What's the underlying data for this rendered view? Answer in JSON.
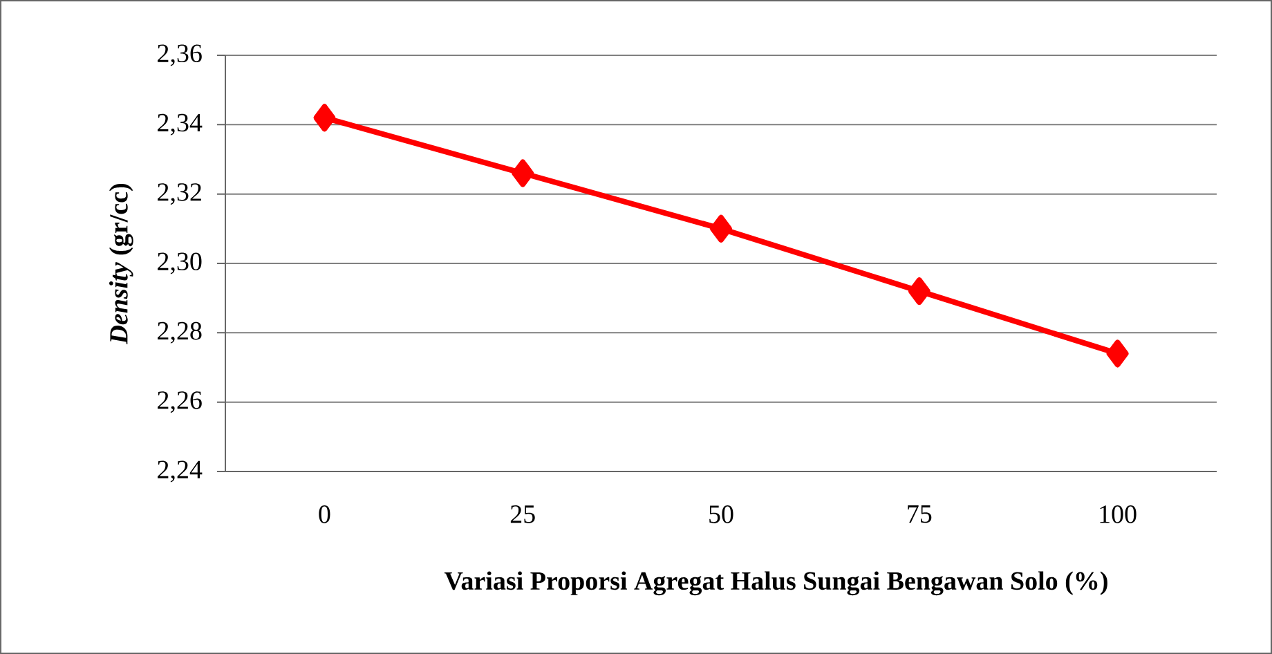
{
  "chart_data": {
    "type": "line",
    "xlabel": "Variasi Proporsi Agregat Halus Sungai Bengawan Solo (%)",
    "ylabel": "*Density* (gr/cc)",
    "categories": [
      "0",
      "25",
      "50",
      "75",
      "100"
    ],
    "series": [
      {
        "color": "#ff0000",
        "values": [
          2.342,
          2.326,
          2.31,
          2.292,
          2.274
        ]
      }
    ],
    "ylim": [
      2.24,
      2.36
    ],
    "yticks": [
      {
        "value": 2.24,
        "label": "2,24"
      },
      {
        "value": 2.26,
        "label": "2,26"
      },
      {
        "value": 2.28,
        "label": "2,28"
      },
      {
        "value": 2.3,
        "label": "2,30"
      },
      {
        "value": 2.32,
        "label": "2,32"
      },
      {
        "value": 2.34,
        "label": "2,34"
      },
      {
        "value": 2.36,
        "label": "2,36"
      }
    ],
    "grid": "y",
    "marker": "diamond",
    "line_style": "solid"
  }
}
